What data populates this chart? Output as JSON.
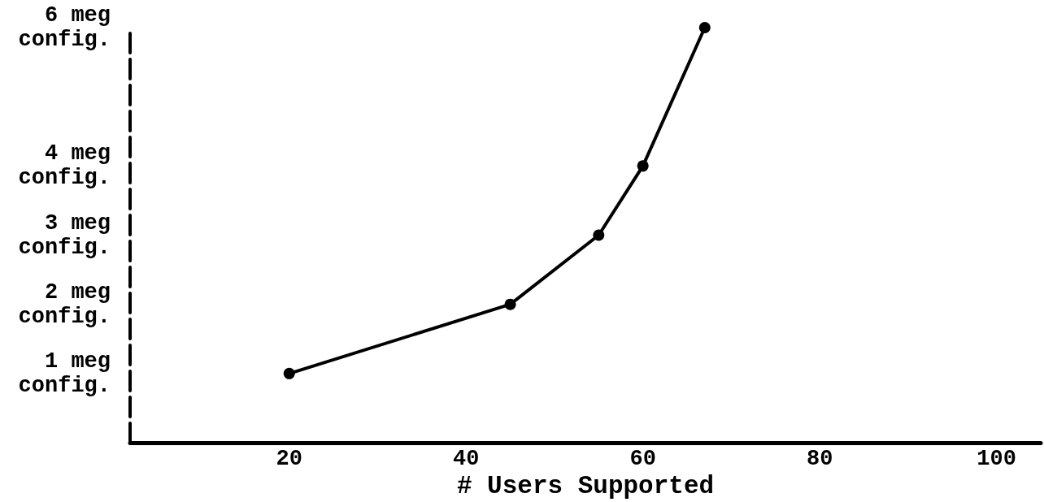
{
  "chart_data": {
    "type": "line",
    "xlabel": "# Users Supported",
    "x": [
      20,
      45,
      55,
      60,
      67
    ],
    "values": [
      1,
      2,
      3,
      4,
      6
    ],
    "color": "#000000",
    "xlim": [
      2,
      105
    ],
    "xticks": [
      20,
      40,
      60,
      80,
      100
    ],
    "ylim": [
      0,
      6
    ],
    "yticks": [
      {
        "value": 1,
        "label": "1 meg config."
      },
      {
        "value": 2,
        "label": "2 meg config."
      },
      {
        "value": 3,
        "label": "3 meg config."
      },
      {
        "value": 4,
        "label": "4 meg config."
      },
      {
        "value": 6,
        "label": "6 meg config."
      }
    ],
    "marker": "circle",
    "line_style": "solid",
    "grid": false
  }
}
